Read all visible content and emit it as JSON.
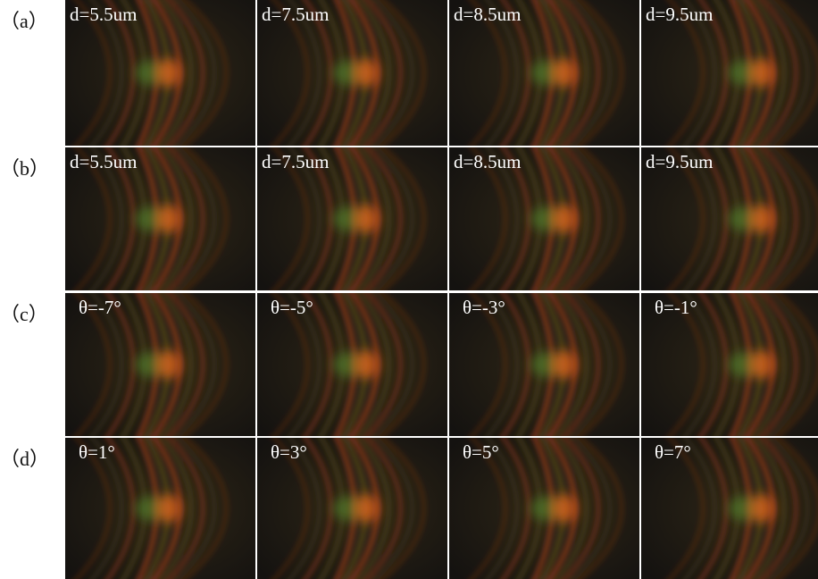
{
  "rows": [
    {
      "label": "（a）",
      "panels": [
        "d=5.5um",
        "d=7.5um",
        "d=8.5um",
        "d=9.5um"
      ]
    },
    {
      "label": "（b）",
      "panels": [
        "d=5.5um",
        "d=7.5um",
        "d=8.5um",
        "d=9.5um"
      ]
    },
    {
      "label": "（c）",
      "panels": [
        "θ=-7°",
        "θ=-5°",
        "θ=-3°",
        "θ=-1°"
      ]
    },
    {
      "label": "（d）",
      "panels": [
        "θ=1°",
        "θ=3°",
        "θ=5°",
        "θ=7°"
      ]
    }
  ]
}
